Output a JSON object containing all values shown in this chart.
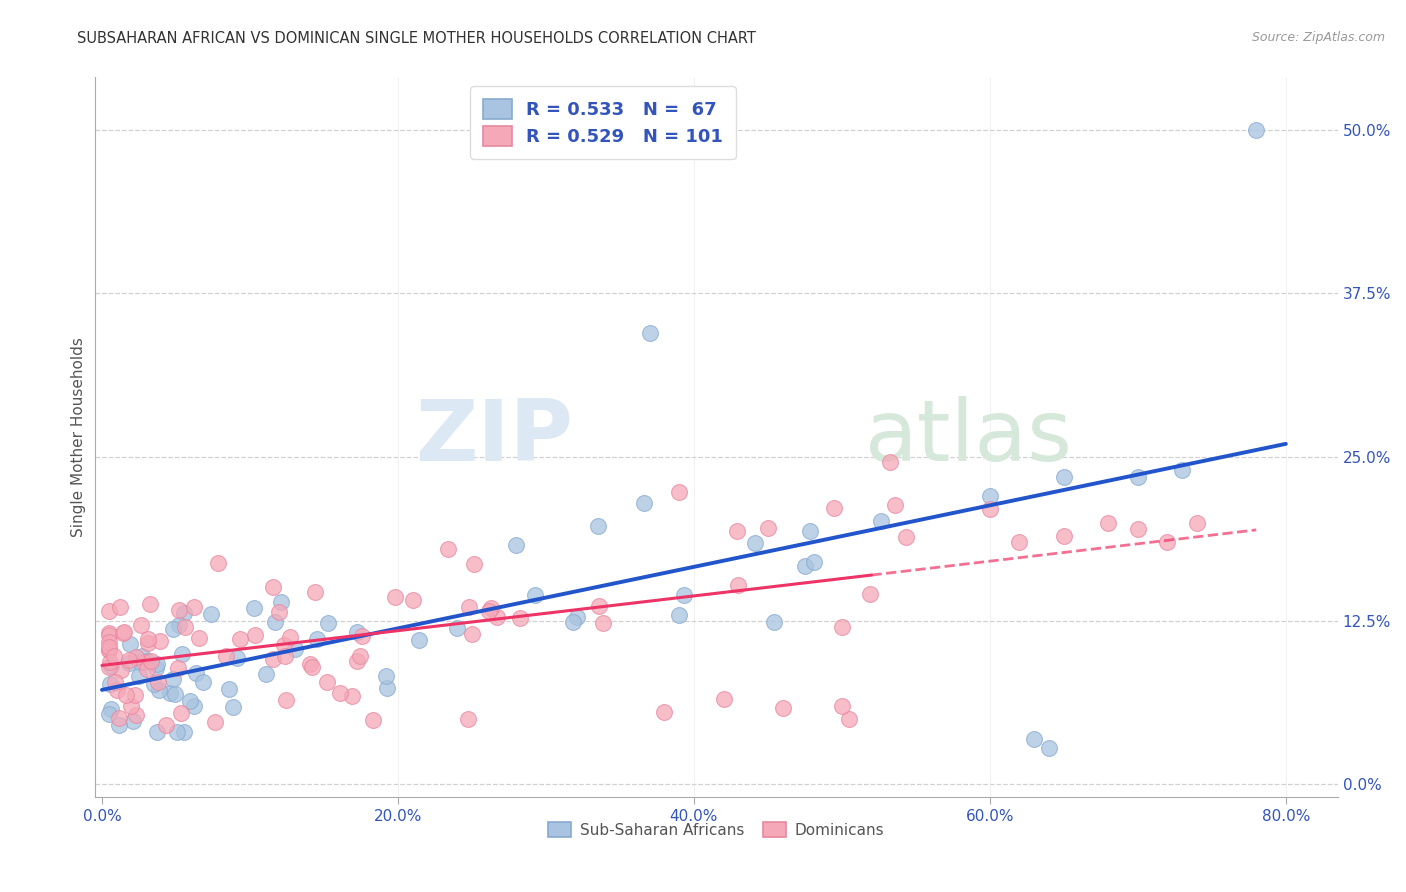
{
  "title": "SUBSAHARAN AFRICAN VS DOMINICAN SINGLE MOTHER HOUSEHOLDS CORRELATION CHART",
  "source": "Source: ZipAtlas.com",
  "ylabel": "Single Mother Households",
  "blue_R": 0.533,
  "blue_N": 67,
  "pink_R": 0.529,
  "pink_N": 101,
  "blue_color": "#a8c4e0",
  "pink_color": "#f5a8b8",
  "blue_line_color": "#2255cc",
  "pink_line_color": "#ee3366",
  "legend_label_blue": "Sub-Saharan Africans",
  "legend_label_pink": "Dominicans",
  "xlim": [
    -0.005,
    0.835
  ],
  "ylim": [
    -0.01,
    0.54
  ],
  "xticks": [
    0.0,
    0.2,
    0.4,
    0.6,
    0.8
  ],
  "yticks": [
    0.0,
    0.125,
    0.25,
    0.375,
    0.5
  ],
  "xticklabels": [
    "0.0%",
    "20.0%",
    "40.0%",
    "60.0%",
    "80.0%"
  ],
  "yticklabels": [
    "0.0%",
    "12.5%",
    "25.0%",
    "37.5%",
    "50.0%"
  ],
  "blue_intercept": 0.072,
  "blue_slope": 0.225,
  "pink_intercept": 0.085,
  "pink_slope": 0.19
}
